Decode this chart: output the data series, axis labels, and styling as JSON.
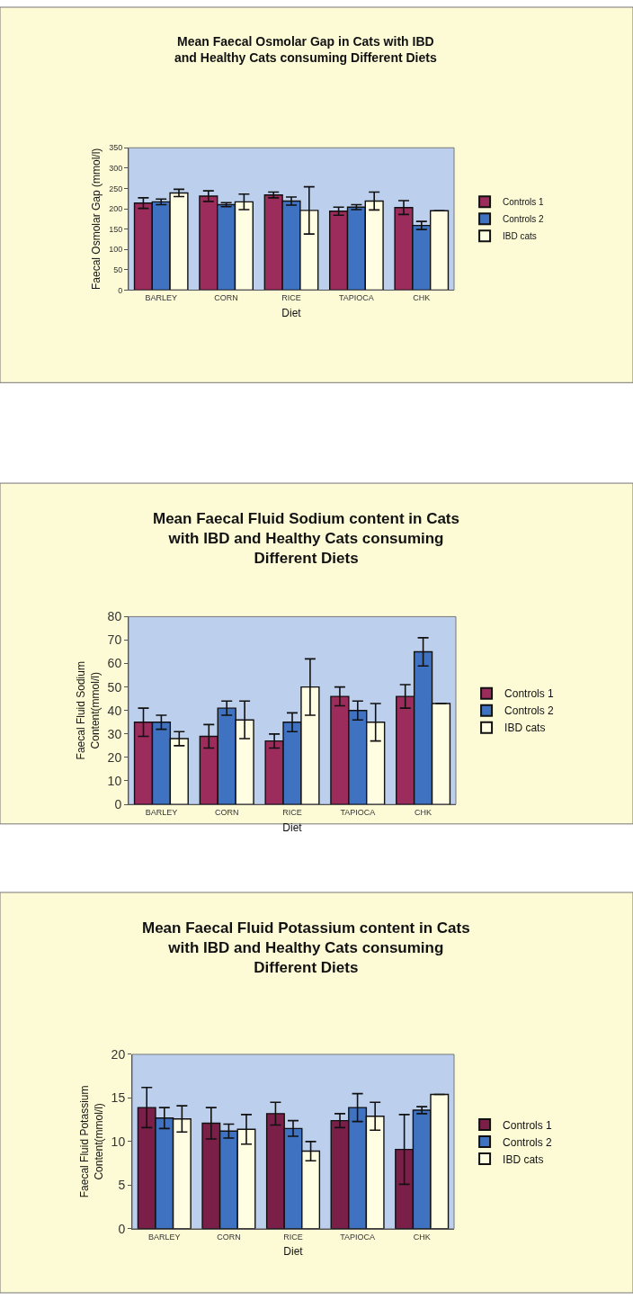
{
  "chart_data": [
    {
      "type": "bar",
      "title": "Mean Faecal Osmolar Gap in Cats with IBD and Healthy Cats consuming Different Diets",
      "xlabel": "Diet",
      "ylabel": "Faecal Osmolar Gap (mmol/l)",
      "categories": [
        "BARLEY",
        "CORN",
        "RICE",
        "TAPIOCA",
        "CHK"
      ],
      "ylim": [
        0,
        350
      ],
      "yticks": [
        0,
        50,
        100,
        150,
        200,
        250,
        300,
        350
      ],
      "legend": "right",
      "series": [
        {
          "name": "Controls 1",
          "color": "#9b2c5c",
          "values": [
            214,
            231,
            234,
            194,
            203
          ],
          "errors": [
            13,
            13,
            7,
            10,
            17
          ]
        },
        {
          "name": "Controls 2",
          "color": "#3f72c0",
          "values": [
            217,
            210,
            219,
            204,
            159
          ],
          "errors": [
            7,
            5,
            10,
            6,
            10
          ]
        },
        {
          "name": "IBD cats",
          "color": "#fffde2",
          "values": [
            239,
            217,
            196,
            219,
            195
          ],
          "errors": [
            9,
            19,
            58,
            22,
            null
          ]
        }
      ]
    },
    {
      "type": "bar",
      "title": "Mean Faecal Fluid Sodium content in Cats with IBD and Healthy Cats consuming Different Diets",
      "xlabel": "Diet",
      "ylabel": "Faecal Fluid Sodium Content(mmol/l)",
      "categories": [
        "BARLEY",
        "CORN",
        "RICE",
        "TAPIOCA",
        "CHK"
      ],
      "ylim": [
        0,
        80
      ],
      "yticks": [
        0,
        10,
        20,
        30,
        40,
        50,
        60,
        70,
        80
      ],
      "legend": "right",
      "series": [
        {
          "name": "Controls 1",
          "color": "#9b2c5c",
          "values": [
            35,
            29,
            27,
            46,
            46
          ],
          "errors": [
            6,
            5,
            3,
            4,
            5
          ]
        },
        {
          "name": "Controls 2",
          "color": "#3f72c0",
          "values": [
            35,
            41,
            35,
            40,
            65
          ],
          "errors": [
            3,
            3,
            4,
            4,
            6
          ]
        },
        {
          "name": "IBD cats",
          "color": "#fffde2",
          "values": [
            28,
            36,
            50,
            35,
            43
          ],
          "errors": [
            3,
            8,
            12,
            8,
            null
          ]
        }
      ]
    },
    {
      "type": "bar",
      "title": "Mean Faecal Fluid Potassium content in Cats with IBD and Healthy Cats consuming Different Diets",
      "xlabel": "Diet",
      "ylabel": "Faecal Fluid Potassium Content(mmol/l)",
      "categories": [
        "BARLEY",
        "CORN",
        "RICE",
        "TAPIOCA",
        "CHK"
      ],
      "ylim": [
        0,
        20
      ],
      "yticks": [
        0,
        5,
        10,
        15,
        20
      ],
      "legend": "right",
      "series": [
        {
          "name": "Controls 1",
          "color": "#7a1f48",
          "values": [
            13.9,
            12.1,
            13.2,
            12.4,
            9.1
          ],
          "errors": [
            2.3,
            1.8,
            1.3,
            0.8,
            4
          ]
        },
        {
          "name": "Controls 2",
          "color": "#3f72c0",
          "values": [
            12.7,
            11.2,
            11.5,
            13.9,
            13.6
          ],
          "errors": [
            1.2,
            0.8,
            0.9,
            1.6,
            0.4
          ]
        },
        {
          "name": "IBD cats",
          "color": "#fffde2",
          "values": [
            12.6,
            11.4,
            8.9,
            12.9,
            15.4
          ],
          "errors": [
            1.5,
            1.7,
            1.1,
            1.6,
            null
          ]
        }
      ]
    }
  ]
}
